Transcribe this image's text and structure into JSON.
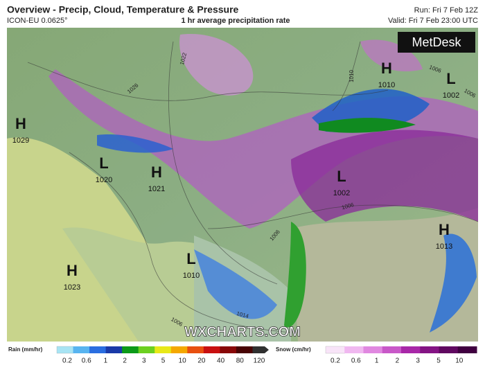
{
  "header": {
    "title": "Overview - Precip, Cloud, Temperature & Pressure",
    "model": "ICON-EU 0.0625°",
    "product": "1 hr average precipitation rate",
    "run": "Run: Fri 7 Feb 12Z",
    "valid": "Valid: Fri 7 Feb 23:00 UTC"
  },
  "pressure_centers": [
    {
      "symbol": "H",
      "value": 1029
    },
    {
      "symbol": "L",
      "value": 1020
    },
    {
      "symbol": "H",
      "value": 1021
    },
    {
      "symbol": "H",
      "value": 1023
    },
    {
      "symbol": "L",
      "value": 1010
    },
    {
      "symbol": "L",
      "value": 1002
    },
    {
      "symbol": "H",
      "value": 1010
    },
    {
      "symbol": "L",
      "value": 1002
    },
    {
      "symbol": "H",
      "value": 1013
    }
  ],
  "isobar_labels": [
    1022,
    1026,
    1010,
    1006,
    1006,
    1006,
    1006,
    1014,
    1006
  ],
  "watermarks": {
    "site": "WXCHARTS.COM",
    "brand": "MetDesk"
  },
  "legend": {
    "rain": {
      "title": "Rain (mm/hr)",
      "ticks": [
        0.2,
        0.6,
        1,
        2,
        3,
        5,
        10,
        20,
        40,
        80,
        120
      ],
      "colors": [
        "#a8e4f4",
        "#58b4f0",
        "#2a6ee0",
        "#1a3aa8",
        "#0c9a18",
        "#6cd020",
        "#e8e818",
        "#f4a800",
        "#e85010",
        "#c81010",
        "#880808",
        "#480404",
        "#303030"
      ]
    },
    "snow": {
      "title": "Snow (cm/hr)",
      "ticks": [
        0.2,
        0.6,
        1,
        2,
        3,
        5,
        10
      ],
      "colors": [
        "#f8e4f8",
        "#f0b8f0",
        "#e088e0",
        "#c858c8",
        "#a828a8",
        "#841484",
        "#600860",
        "#400040"
      ]
    }
  }
}
